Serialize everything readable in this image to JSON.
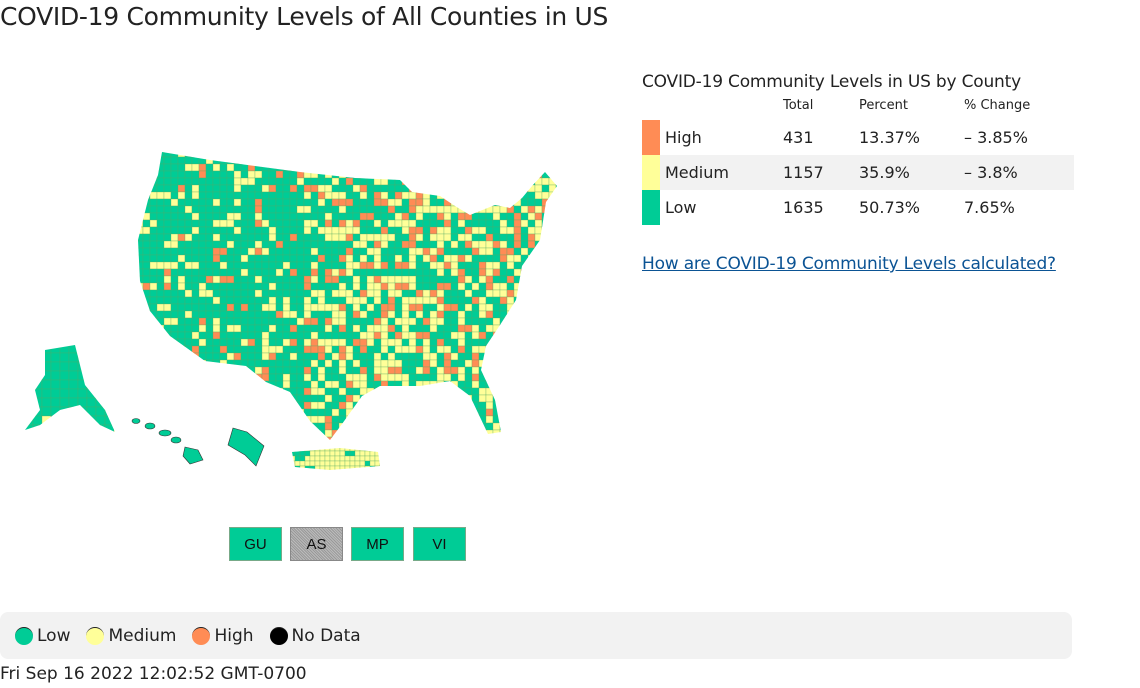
{
  "title": "COVID-19 Community Levels of All Counties in US",
  "colors": {
    "low": "#00cc96",
    "medium": "#ffff99",
    "high": "#ff8c55",
    "no_data": "#000000"
  },
  "territories": [
    {
      "label": "GU",
      "level": "low"
    },
    {
      "label": "AS",
      "level": "no_data"
    },
    {
      "label": "MP",
      "level": "low"
    },
    {
      "label": "VI",
      "level": "low"
    }
  ],
  "summary": {
    "title": "COVID-19 Community Levels in US by County",
    "headers": [
      "",
      "Total",
      "Percent",
      "% Change"
    ],
    "rows": [
      {
        "level": "High",
        "total": "431",
        "percent": "13.37%",
        "change": "– 3.85%",
        "color": "#ff8c55"
      },
      {
        "level": "Medium",
        "total": "1157",
        "percent": "35.9%",
        "change": "– 3.8%",
        "color": "#ffff99"
      },
      {
        "level": "Low",
        "total": "1635",
        "percent": "50.73%",
        "change": "7.65%",
        "color": "#00cc96"
      }
    ],
    "link": "How are COVID-19 Community Levels calculated?"
  },
  "legend": [
    {
      "label": "Low",
      "color": "#00cc96"
    },
    {
      "label": "Medium",
      "color": "#ffff99"
    },
    {
      "label": "High",
      "color": "#ff8c55"
    },
    {
      "label": "No Data",
      "color": "#000000"
    }
  ],
  "timestamp": "Fri Sep 16 2022 12:02:52 GMT-0700"
}
